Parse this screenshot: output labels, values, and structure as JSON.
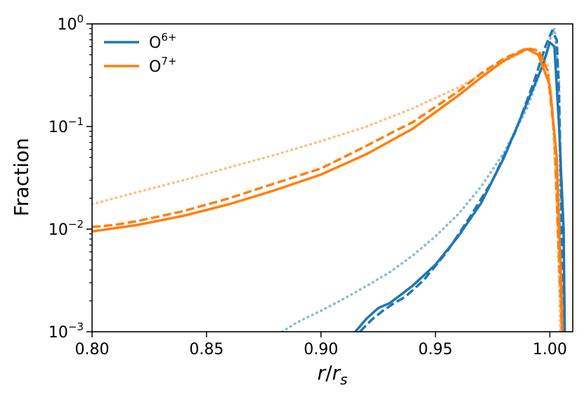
{
  "chart_data": {
    "type": "line",
    "title": "",
    "xlabel": "r/r_s",
    "xlabel_parts": {
      "r": "r",
      "slash": "/",
      "rs_base": "r",
      "rs_sub": "s"
    },
    "ylabel": "Fraction",
    "xlim": [
      0.8,
      1.01
    ],
    "ylim": [
      0.001,
      1.0
    ],
    "yscale": "log",
    "grid": false,
    "legend_position": "top-left",
    "x_ticks": [
      {
        "value": 0.8,
        "label": "0.80"
      },
      {
        "value": 0.85,
        "label": "0.85"
      },
      {
        "value": 0.9,
        "label": "0.90"
      },
      {
        "value": 0.95,
        "label": "0.95"
      },
      {
        "value": 1.0,
        "label": "1.00"
      }
    ],
    "y_ticks": [
      {
        "value": 0.001,
        "base": "10",
        "exp": "−3"
      },
      {
        "value": 0.01,
        "base": "10",
        "exp": "−2"
      },
      {
        "value": 0.1,
        "base": "10",
        "exp": "−1"
      },
      {
        "value": 1.0,
        "base": "10",
        "exp": "0"
      }
    ],
    "legend": [
      {
        "base": "O",
        "sup": "6+",
        "color": "#1f77b4"
      },
      {
        "base": "O",
        "sup": "7+",
        "color": "#ff7f0e"
      }
    ],
    "series": [
      {
        "name": "O6+ solid",
        "ion": "O6+",
        "style": "solid",
        "color": "#1f77b4",
        "opacity": 1.0,
        "x": [
          0.915,
          0.92,
          0.925,
          0.93,
          0.935,
          0.94,
          0.95,
          0.96,
          0.97,
          0.98,
          0.99,
          0.997,
          1.0,
          1.002,
          1.004,
          1.006,
          1.0065
        ],
        "y": [
          0.001,
          0.00135,
          0.0017,
          0.0019,
          0.0023,
          0.0028,
          0.0045,
          0.0085,
          0.018,
          0.05,
          0.17,
          0.4,
          0.66,
          0.6,
          0.1,
          0.01,
          0.001
        ]
      },
      {
        "name": "O6+ dashed",
        "ion": "O6+",
        "style": "dashed",
        "color": "#1f77b4",
        "opacity": 1.0,
        "x": [
          0.917,
          0.922,
          0.927,
          0.932,
          0.937,
          0.945,
          0.955,
          0.965,
          0.975,
          0.985,
          0.993,
          0.998,
          1.001,
          1.003,
          1.004,
          1.005,
          1.0055
        ],
        "y": [
          0.001,
          0.0013,
          0.0016,
          0.0019,
          0.0022,
          0.0032,
          0.006,
          0.013,
          0.03,
          0.09,
          0.27,
          0.6,
          0.86,
          0.7,
          0.2,
          0.02,
          0.001
        ]
      },
      {
        "name": "O6+ dotted",
        "ion": "O6+",
        "style": "dotted",
        "color": "#1f77b4",
        "opacity": 0.5,
        "x": [
          0.883,
          0.89,
          0.9,
          0.91,
          0.92,
          0.93,
          0.94,
          0.95,
          0.96,
          0.97,
          0.98,
          0.99,
          0.996,
          1.0,
          1.002,
          1.004,
          1.005
        ],
        "y": [
          0.001,
          0.00125,
          0.0016,
          0.0021,
          0.0028,
          0.0038,
          0.0055,
          0.0085,
          0.014,
          0.026,
          0.056,
          0.15,
          0.35,
          0.7,
          0.9,
          0.3,
          0.001
        ]
      },
      {
        "name": "O7+ solid",
        "ion": "O7+",
        "style": "solid",
        "color": "#ff7f0e",
        "opacity": 1.0,
        "x": [
          0.8,
          0.82,
          0.84,
          0.86,
          0.88,
          0.9,
          0.92,
          0.94,
          0.96,
          0.97,
          0.98,
          0.99,
          0.995,
          1.0,
          1.003,
          1.004,
          1.005,
          1.0055
        ],
        "y": [
          0.0095,
          0.011,
          0.0135,
          0.0175,
          0.024,
          0.034,
          0.054,
          0.095,
          0.2,
          0.3,
          0.44,
          0.57,
          0.5,
          0.25,
          0.05,
          0.01,
          0.003,
          0.001
        ]
      },
      {
        "name": "O7+ dashed",
        "ion": "O7+",
        "style": "dashed",
        "color": "#ff7f0e",
        "opacity": 1.0,
        "x": [
          0.8,
          0.81,
          0.82,
          0.84,
          0.86,
          0.88,
          0.9,
          0.92,
          0.93,
          0.94,
          0.96,
          0.97,
          0.98,
          0.99,
          0.995,
          0.999,
          1.002,
          1.003,
          1.004,
          1.005,
          1.0055
        ],
        "y": [
          0.0105,
          0.011,
          0.012,
          0.015,
          0.02,
          0.028,
          0.039,
          0.065,
          0.085,
          0.11,
          0.22,
          0.33,
          0.46,
          0.58,
          0.55,
          0.35,
          0.08,
          0.02,
          0.005,
          0.0015,
          0.001
        ]
      },
      {
        "name": "O7+ dotted",
        "ion": "O7+",
        "style": "dotted",
        "color": "#ff7f0e",
        "opacity": 0.5,
        "x": [
          0.8,
          0.82,
          0.84,
          0.86,
          0.88,
          0.9,
          0.92,
          0.94,
          0.96,
          0.97,
          0.98,
          0.99,
          0.995,
          0.999,
          1.001,
          1.003,
          1.004,
          1.0045
        ],
        "y": [
          0.0175,
          0.023,
          0.03,
          0.04,
          0.053,
          0.072,
          0.1,
          0.15,
          0.24,
          0.32,
          0.43,
          0.56,
          0.55,
          0.4,
          0.15,
          0.02,
          0.003,
          0.001
        ]
      }
    ]
  }
}
